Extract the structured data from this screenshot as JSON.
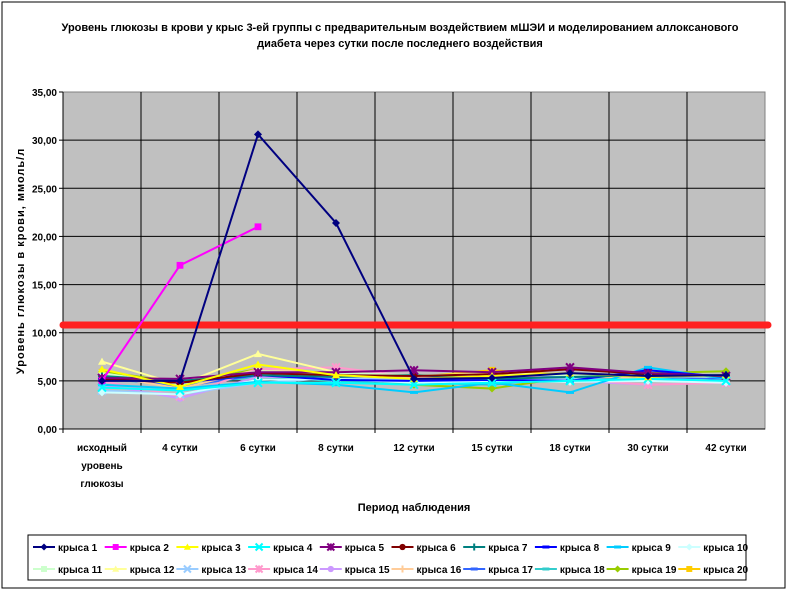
{
  "chart_data": {
    "type": "line",
    "title_lines": [
      "Уровень глюкозы в крови у крыс 3-ей группы с предварительным воздействием мШЭИ и моделированием аллоксанового",
      "диабета через сутки после последнего воздействия"
    ],
    "xlabel": "Период наблюдения",
    "ylabel": "Уровень глюкозы в крови, ммоль/л",
    "categories": [
      [
        "исходный",
        "уровень",
        "глюкозы"
      ],
      [
        "4 сутки"
      ],
      [
        "6 сутки"
      ],
      [
        "8 сутки"
      ],
      [
        "12 сутки"
      ],
      [
        "15 сутки"
      ],
      [
        "18 сутки"
      ],
      [
        "30 сутки"
      ],
      [
        "42 сутки"
      ]
    ],
    "ylim": [
      0,
      35
    ],
    "yticks": [
      "0,00",
      "5,00",
      "10,00",
      "15,00",
      "20,00",
      "25,00",
      "30,00",
      "35,00"
    ],
    "grid": true,
    "threshold": {
      "value": 10.8,
      "color": "#ff2020"
    },
    "legend_position": "bottom",
    "series": [
      {
        "name": "крыса 1",
        "color": "#000080",
        "marker": "diamond",
        "values": [
          5.0,
          5.0,
          30.6,
          21.4,
          5.2,
          5.3,
          5.8,
          5.5,
          5.6
        ]
      },
      {
        "name": "крыса 2",
        "color": "#ff00ff",
        "marker": "square",
        "values": [
          5.0,
          17.0,
          21.0,
          null,
          null,
          null,
          null,
          null,
          null
        ]
      },
      {
        "name": "крыса 3",
        "color": "#ffff00",
        "marker": "triangle",
        "values": [
          6.2,
          4.4,
          6.7,
          5.6,
          5.2,
          5.5,
          5.8,
          5.4,
          5.6
        ]
      },
      {
        "name": "крыса 4",
        "color": "#00ffff",
        "marker": "x",
        "values": [
          4.3,
          4.0,
          4.8,
          4.8,
          4.6,
          4.8,
          5.0,
          5.2,
          5.0
        ]
      },
      {
        "name": "крыса 5",
        "color": "#800080",
        "marker": "star",
        "values": [
          5.3,
          5.2,
          5.9,
          5.9,
          6.1,
          5.9,
          6.4,
          5.8,
          5.5
        ]
      },
      {
        "name": "крыса 6",
        "color": "#800000",
        "marker": "circle",
        "values": [
          5.2,
          4.8,
          5.8,
          5.6,
          5.5,
          5.7,
          6.2,
          5.7,
          5.5
        ]
      },
      {
        "name": "крыса 7",
        "color": "#008080",
        "marker": "plus",
        "values": [
          5.5,
          5.0,
          5.6,
          5.4,
          5.6,
          5.2,
          5.4,
          5.6,
          5.6
        ]
      },
      {
        "name": "крыса 8",
        "color": "#0000ff",
        "marker": "dash",
        "values": [
          5.2,
          4.8,
          5.6,
          5.1,
          5.0,
          5.1,
          5.0,
          6.1,
          5.4
        ]
      },
      {
        "name": "крыса 9",
        "color": "#00ccff",
        "marker": "dash",
        "values": [
          4.6,
          4.2,
          4.9,
          4.6,
          3.8,
          4.8,
          3.8,
          6.4,
          5.2
        ]
      },
      {
        "name": "крыса 10",
        "color": "#ccffff",
        "marker": "diamond",
        "values": [
          3.8,
          3.6,
          5.1,
          5.2,
          4.8,
          5.0,
          4.9,
          5.0,
          4.8
        ]
      },
      {
        "name": "крыса 11",
        "color": "#ccffcc",
        "marker": "square",
        "values": [
          5.8,
          4.6,
          6.0,
          5.8,
          5.6,
          5.6,
          5.6,
          5.5,
          5.4
        ]
      },
      {
        "name": "крыса 12",
        "color": "#ffff99",
        "marker": "triangle",
        "values": [
          7.0,
          4.6,
          7.8,
          5.9,
          5.5,
          5.8,
          5.6,
          5.6,
          5.6
        ]
      },
      {
        "name": "крыса 13",
        "color": "#99ccff",
        "marker": "x",
        "values": [
          4.0,
          3.6,
          4.8,
          5.3,
          5.1,
          5.0,
          5.2,
          5.0,
          5.0
        ]
      },
      {
        "name": "крыса 14",
        "color": "#ff99cc",
        "marker": "star",
        "values": [
          5.0,
          3.4,
          6.2,
          6.4,
          5.4,
          5.6,
          5.2,
          4.6,
          4.8
        ]
      },
      {
        "name": "крыса 15",
        "color": "#cc99ff",
        "marker": "circle",
        "values": [
          4.6,
          3.2,
          5.4,
          5.4,
          5.0,
          5.2,
          5.0,
          4.6,
          4.8
        ]
      },
      {
        "name": "крыса 16",
        "color": "#ffcc99",
        "marker": "plus",
        "values": [
          5.6,
          4.2,
          6.2,
          5.8,
          5.4,
          5.8,
          5.6,
          5.2,
          5.0
        ]
      },
      {
        "name": "крыса 17",
        "color": "#3366ff",
        "marker": "dash",
        "values": [
          5.4,
          4.4,
          5.6,
          5.2,
          5.6,
          5.2,
          5.6,
          5.4,
          5.2
        ]
      },
      {
        "name": "крыса 18",
        "color": "#33cccc",
        "marker": "dash",
        "values": [
          5.2,
          4.6,
          5.4,
          5.0,
          4.8,
          4.6,
          5.4,
          5.2,
          5.6
        ]
      },
      {
        "name": "крыса 19",
        "color": "#99cc00",
        "marker": "diamond",
        "values": [
          6.0,
          4.8,
          6.2,
          5.6,
          4.6,
          4.2,
          5.4,
          5.8,
          6.0
        ]
      },
      {
        "name": "крыса 20",
        "color": "#ffcc00",
        "marker": "square",
        "values": [
          5.9,
          4.3,
          6.3,
          5.6,
          5.4,
          6.1,
          5.6,
          5.0,
          5.2
        ]
      }
    ]
  }
}
